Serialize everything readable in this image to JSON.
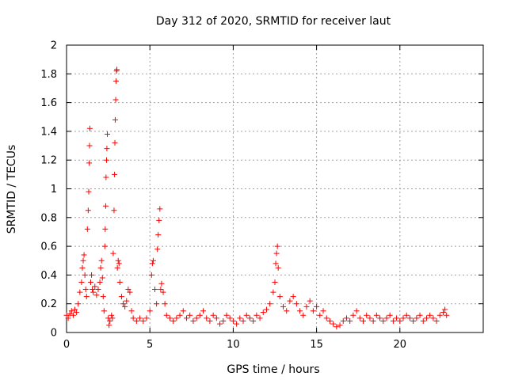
{
  "chart_data": {
    "type": "scatter",
    "title": "Day 312 of 2020, SRMTID for receiver laut",
    "xlabel": "GPS time / hours",
    "ylabel": "SRMTID / TECUs",
    "xlim": [
      0,
      25
    ],
    "ylim": [
      0,
      2
    ],
    "xticks": [
      0,
      5,
      10,
      15,
      20
    ],
    "yticks": [
      0,
      0.2,
      0.4,
      0.6,
      0.8,
      1,
      1.2,
      1.4,
      1.6,
      1.8,
      2
    ],
    "xtick_labels": [
      "0",
      "5",
      "10",
      "15",
      "20"
    ],
    "ytick_labels": [
      "0",
      "0.2",
      "0.4",
      "0.6",
      "0.8",
      "1",
      "1.2",
      "1.4",
      "1.6",
      "1.8",
      "2"
    ],
    "grid": true,
    "marker": "+",
    "color": "#ff0000",
    "series": [
      {
        "name": "SRMTID",
        "points": [
          [
            0.0,
            0.12
          ],
          [
            0.1,
            0.1
          ],
          [
            0.2,
            0.13
          ],
          [
            0.3,
            0.15
          ],
          [
            0.4,
            0.12
          ],
          [
            0.5,
            0.16
          ],
          [
            0.6,
            0.14
          ],
          [
            0.7,
            0.2
          ],
          [
            0.8,
            0.28
          ],
          [
            0.9,
            0.35
          ],
          [
            0.95,
            0.45
          ],
          [
            1.0,
            0.5
          ],
          [
            1.05,
            0.54
          ],
          [
            1.1,
            0.4
          ],
          [
            1.15,
            0.3
          ],
          [
            1.2,
            0.25
          ],
          [
            1.25,
            0.72
          ],
          [
            1.3,
            0.85
          ],
          [
            1.33,
            0.98
          ],
          [
            1.36,
            1.18
          ],
          [
            1.38,
            1.3
          ],
          [
            1.4,
            1.42
          ],
          [
            1.45,
            0.35
          ],
          [
            1.5,
            0.4
          ],
          [
            1.55,
            0.3
          ],
          [
            1.6,
            0.28
          ],
          [
            1.7,
            0.32
          ],
          [
            1.8,
            0.26
          ],
          [
            1.9,
            0.3
          ],
          [
            2.0,
            0.35
          ],
          [
            2.05,
            0.45
          ],
          [
            2.1,
            0.5
          ],
          [
            2.15,
            0.38
          ],
          [
            2.2,
            0.25
          ],
          [
            2.25,
            0.15
          ],
          [
            2.3,
            0.6
          ],
          [
            2.32,
            0.72
          ],
          [
            2.35,
            0.88
          ],
          [
            2.37,
            1.08
          ],
          [
            2.4,
            1.2
          ],
          [
            2.42,
            1.28
          ],
          [
            2.45,
            1.38
          ],
          [
            2.5,
            0.1
          ],
          [
            2.55,
            0.05
          ],
          [
            2.6,
            0.08
          ],
          [
            2.7,
            0.12
          ],
          [
            2.75,
            0.1
          ],
          [
            2.8,
            0.55
          ],
          [
            2.85,
            0.85
          ],
          [
            2.88,
            1.1
          ],
          [
            2.9,
            1.32
          ],
          [
            2.92,
            1.48
          ],
          [
            2.95,
            1.62
          ],
          [
            2.97,
            1.75
          ],
          [
            3.0,
            1.82
          ],
          [
            3.02,
            1.83
          ],
          [
            3.05,
            0.45
          ],
          [
            3.1,
            0.5
          ],
          [
            3.15,
            0.48
          ],
          [
            3.2,
            0.35
          ],
          [
            3.3,
            0.25
          ],
          [
            3.4,
            0.2
          ],
          [
            3.5,
            0.18
          ],
          [
            3.6,
            0.22
          ],
          [
            3.7,
            0.3
          ],
          [
            3.8,
            0.28
          ],
          [
            3.9,
            0.15
          ],
          [
            4.0,
            0.1
          ],
          [
            4.2,
            0.08
          ],
          [
            4.4,
            0.1
          ],
          [
            4.6,
            0.08
          ],
          [
            4.8,
            0.1
          ],
          [
            5.0,
            0.15
          ],
          [
            5.1,
            0.4
          ],
          [
            5.15,
            0.48
          ],
          [
            5.2,
            0.5
          ],
          [
            5.3,
            0.3
          ],
          [
            5.4,
            0.2
          ],
          [
            5.45,
            0.58
          ],
          [
            5.5,
            0.68
          ],
          [
            5.55,
            0.78
          ],
          [
            5.6,
            0.86
          ],
          [
            5.65,
            0.3
          ],
          [
            5.7,
            0.34
          ],
          [
            5.8,
            0.28
          ],
          [
            5.9,
            0.2
          ],
          [
            6.0,
            0.12
          ],
          [
            6.2,
            0.1
          ],
          [
            6.4,
            0.08
          ],
          [
            6.6,
            0.1
          ],
          [
            6.8,
            0.12
          ],
          [
            7.0,
            0.15
          ],
          [
            7.2,
            0.1
          ],
          [
            7.4,
            0.12
          ],
          [
            7.6,
            0.08
          ],
          [
            7.8,
            0.1
          ],
          [
            8.0,
            0.12
          ],
          [
            8.2,
            0.15
          ],
          [
            8.4,
            0.1
          ],
          [
            8.6,
            0.08
          ],
          [
            8.8,
            0.12
          ],
          [
            9.0,
            0.1
          ],
          [
            9.2,
            0.06
          ],
          [
            9.4,
            0.08
          ],
          [
            9.6,
            0.12
          ],
          [
            9.8,
            0.1
          ],
          [
            10.0,
            0.08
          ],
          [
            10.2,
            0.06
          ],
          [
            10.4,
            0.1
          ],
          [
            10.6,
            0.08
          ],
          [
            10.8,
            0.12
          ],
          [
            11.0,
            0.1
          ],
          [
            11.2,
            0.08
          ],
          [
            11.4,
            0.12
          ],
          [
            11.6,
            0.1
          ],
          [
            11.8,
            0.14
          ],
          [
            12.0,
            0.16
          ],
          [
            12.2,
            0.2
          ],
          [
            12.4,
            0.28
          ],
          [
            12.5,
            0.35
          ],
          [
            12.55,
            0.48
          ],
          [
            12.6,
            0.55
          ],
          [
            12.65,
            0.6
          ],
          [
            12.7,
            0.45
          ],
          [
            12.8,
            0.25
          ],
          [
            13.0,
            0.18
          ],
          [
            13.2,
            0.15
          ],
          [
            13.4,
            0.22
          ],
          [
            13.6,
            0.25
          ],
          [
            13.8,
            0.2
          ],
          [
            14.0,
            0.15
          ],
          [
            14.2,
            0.12
          ],
          [
            14.4,
            0.18
          ],
          [
            14.6,
            0.22
          ],
          [
            14.8,
            0.15
          ],
          [
            15.0,
            0.18
          ],
          [
            15.2,
            0.12
          ],
          [
            15.4,
            0.15
          ],
          [
            15.6,
            0.1
          ],
          [
            15.8,
            0.08
          ],
          [
            16.0,
            0.06
          ],
          [
            16.2,
            0.04
          ],
          [
            16.4,
            0.05
          ],
          [
            16.6,
            0.08
          ],
          [
            16.8,
            0.1
          ],
          [
            17.0,
            0.08
          ],
          [
            17.2,
            0.12
          ],
          [
            17.4,
            0.15
          ],
          [
            17.6,
            0.1
          ],
          [
            17.8,
            0.08
          ],
          [
            18.0,
            0.12
          ],
          [
            18.2,
            0.1
          ],
          [
            18.4,
            0.08
          ],
          [
            18.6,
            0.12
          ],
          [
            18.8,
            0.1
          ],
          [
            19.0,
            0.08
          ],
          [
            19.2,
            0.1
          ],
          [
            19.4,
            0.12
          ],
          [
            19.6,
            0.08
          ],
          [
            19.8,
            0.1
          ],
          [
            20.0,
            0.08
          ],
          [
            20.2,
            0.1
          ],
          [
            20.4,
            0.12
          ],
          [
            20.6,
            0.1
          ],
          [
            20.8,
            0.08
          ],
          [
            21.0,
            0.1
          ],
          [
            21.2,
            0.12
          ],
          [
            21.4,
            0.08
          ],
          [
            21.6,
            0.1
          ],
          [
            21.8,
            0.12
          ],
          [
            22.0,
            0.1
          ],
          [
            22.2,
            0.08
          ],
          [
            22.4,
            0.12
          ],
          [
            22.6,
            0.14
          ],
          [
            22.7,
            0.16
          ],
          [
            22.8,
            0.12
          ]
        ]
      }
    ]
  }
}
